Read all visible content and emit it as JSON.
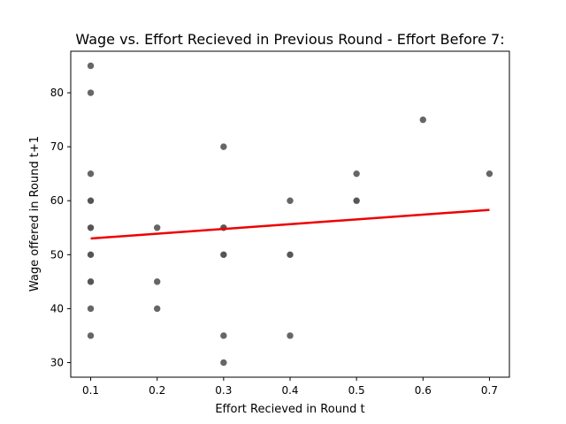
{
  "chart_data": {
    "type": "scatter",
    "title": "Wage vs. Effort Recieved in Previous Round - Effort Before 7:",
    "xlabel": "Effort Recieved in Round t",
    "ylabel": "Wage offered in Round t+1",
    "xlim": [
      0.07,
      0.73
    ],
    "ylim": [
      27.3,
      87.7
    ],
    "xticks": [
      "0.1",
      "0.2",
      "0.3",
      "0.4",
      "0.5",
      "0.6",
      "0.7"
    ],
    "yticks": [
      "30",
      "40",
      "50",
      "60",
      "70",
      "80"
    ],
    "grid": false,
    "series": [
      {
        "points": [
          {
            "x": 0.1,
            "y": 85,
            "count": 1
          },
          {
            "x": 0.1,
            "y": 80,
            "count": 1
          },
          {
            "x": 0.1,
            "y": 65,
            "count": 1
          },
          {
            "x": 0.1,
            "y": 60,
            "count": 3
          },
          {
            "x": 0.1,
            "y": 55,
            "count": 3
          },
          {
            "x": 0.1,
            "y": 50,
            "count": 3
          },
          {
            "x": 0.1,
            "y": 45,
            "count": 3
          },
          {
            "x": 0.1,
            "y": 40,
            "count": 1
          },
          {
            "x": 0.1,
            "y": 35,
            "count": 1
          },
          {
            "x": 0.2,
            "y": 55,
            "count": 1
          },
          {
            "x": 0.2,
            "y": 45,
            "count": 1
          },
          {
            "x": 0.2,
            "y": 40,
            "count": 1
          },
          {
            "x": 0.3,
            "y": 70,
            "count": 1
          },
          {
            "x": 0.3,
            "y": 55,
            "count": 2
          },
          {
            "x": 0.3,
            "y": 50,
            "count": 3
          },
          {
            "x": 0.3,
            "y": 35,
            "count": 1
          },
          {
            "x": 0.3,
            "y": 30,
            "count": 1
          },
          {
            "x": 0.4,
            "y": 60,
            "count": 1
          },
          {
            "x": 0.4,
            "y": 50,
            "count": 2
          },
          {
            "x": 0.4,
            "y": 35,
            "count": 1
          },
          {
            "x": 0.5,
            "y": 65,
            "count": 1
          },
          {
            "x": 0.5,
            "y": 60,
            "count": 2
          },
          {
            "x": 0.6,
            "y": 75,
            "count": 1
          },
          {
            "x": 0.7,
            "y": 65,
            "count": 1
          }
        ],
        "color": "#555555"
      }
    ],
    "trendline": {
      "x": [
        0.1,
        0.7
      ],
      "y": [
        53.0,
        58.3
      ],
      "color": "#ee0000"
    }
  }
}
